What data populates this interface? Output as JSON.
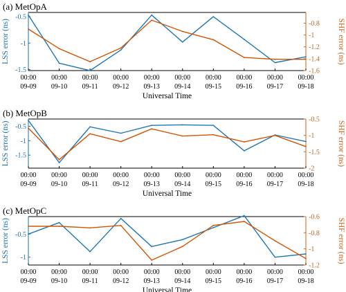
{
  "figure": {
    "colors": {
      "left": "#1f77b4",
      "right": "#d35400",
      "axis": "#000000",
      "left_axis": "#1f6fa8",
      "right_axis": "#c8651b"
    }
  },
  "chart_data": [
    {
      "type": "line",
      "title": "(a) MetOpA",
      "xlabel": "Universal Time",
      "ylabel_left": "LSS error (ns)",
      "ylabel_right": "SHF error (ns)",
      "x_time": [
        "00:00",
        "00:00",
        "00:00",
        "00:00",
        "00:00",
        "00:00",
        "00:00",
        "00:00",
        "00:00",
        "00:00"
      ],
      "x_date": [
        "09-09",
        "09-10",
        "09-11",
        "09-12",
        "09-13",
        "09-14",
        "09-15",
        "09-16",
        "09-17",
        "09-18"
      ],
      "left_ylim": [
        -1.52,
        -0.42
      ],
      "left_ticks": [
        -1.5,
        -1,
        -0.5
      ],
      "left_tick_labels": [
        "-1.5",
        "-1",
        "-0.5"
      ],
      "right_ylim": [
        -1.6,
        -0.62
      ],
      "right_ticks": [
        -1.6,
        -1.4,
        -1.2,
        -1,
        -0.8
      ],
      "right_tick_labels": [
        "-1.6",
        "-1.4",
        "-1.2",
        "-1",
        "-0.8"
      ],
      "series": [
        {
          "axis": "left",
          "color": "#1f77b4",
          "values": [
            -0.47,
            -1.38,
            -1.52,
            -1.13,
            -0.47,
            -0.98,
            -0.5,
            -0.93,
            -1.37,
            -1.26
          ]
        },
        {
          "axis": "right",
          "color": "#d35400",
          "values": [
            -0.9,
            -1.23,
            -1.45,
            -1.22,
            -0.75,
            -0.94,
            -1.08,
            -1.38,
            -1.41,
            -1.41
          ]
        }
      ]
    },
    {
      "type": "line",
      "title": "(b) MetOpB",
      "xlabel": "Universal Time",
      "ylabel_left": "LSS error (ns)",
      "ylabel_right": "SHF error (ns)",
      "x_time": [
        "00:00",
        "00:00",
        "00:00",
        "00:00",
        "00:00",
        "00:00",
        "00:00",
        "00:00",
        "00:00",
        "00:00"
      ],
      "x_date": [
        "09-09",
        "09-10",
        "09-11",
        "09-12",
        "09-13",
        "09-14",
        "09-15",
        "09-16",
        "09-17",
        "09-18"
      ],
      "left_ylim": [
        -1.95,
        -0.25
      ],
      "left_ticks": [
        -1.5,
        -1,
        -0.5
      ],
      "left_tick_labels": [
        "-1.5",
        "-1",
        "-0.5"
      ],
      "right_ylim": [
        -2,
        -0.5
      ],
      "right_ticks": [
        -2,
        -1.5,
        -1,
        -0.5
      ],
      "right_tick_labels": [
        "-2",
        "-1.5",
        "-1",
        "-0.5"
      ],
      "series": [
        {
          "axis": "left",
          "color": "#1f77b4",
          "values": [
            -0.3,
            -1.76,
            -0.52,
            -0.74,
            -0.47,
            -0.45,
            -0.47,
            -1.35,
            -0.8,
            -1.03
          ]
        },
        {
          "axis": "right",
          "color": "#d35400",
          "values": [
            -0.78,
            -1.74,
            -0.95,
            -1.19,
            -0.8,
            -1.02,
            -0.98,
            -1.2,
            -1.0,
            -1.34
          ]
        }
      ]
    },
    {
      "type": "line",
      "title": "(c) MetOpC",
      "xlabel": "Universal Time",
      "ylabel_left": "LSS error (ns)",
      "ylabel_right": "SHF error (ns)",
      "x_time": [
        "00:00",
        "00:00",
        "00:00",
        "00:00",
        "00:00",
        "00:00",
        "00:00",
        "00:00",
        "00:00",
        "00:00"
      ],
      "x_date": [
        "09-09",
        "09-10",
        "09-11",
        "09-12",
        "09-13",
        "09-14",
        "09-15",
        "09-16",
        "09-17",
        "09-18"
      ],
      "left_ylim": [
        -1.17,
        -0.12
      ],
      "left_ticks": [
        -1,
        -0.5
      ],
      "left_tick_labels": [
        "-1",
        "-0.5"
      ],
      "right_ylim": [
        -1.2,
        -0.6
      ],
      "right_ticks": [
        -1.2,
        -1,
        -0.8,
        -0.6
      ],
      "right_tick_labels": [
        "-1.2",
        "-1",
        "-0.8",
        "-0.6"
      ],
      "series": [
        {
          "axis": "left",
          "color": "#1f77b4",
          "values": [
            -0.5,
            -0.25,
            -0.88,
            -0.16,
            -0.77,
            -0.62,
            -0.36,
            -0.1,
            -1.0,
            -0.93
          ]
        },
        {
          "axis": "right",
          "color": "#d35400",
          "values": [
            -0.72,
            -0.72,
            -0.74,
            -0.71,
            -1.14,
            -0.97,
            -0.71,
            -0.66,
            -0.9,
            -1.12
          ]
        }
      ]
    }
  ]
}
